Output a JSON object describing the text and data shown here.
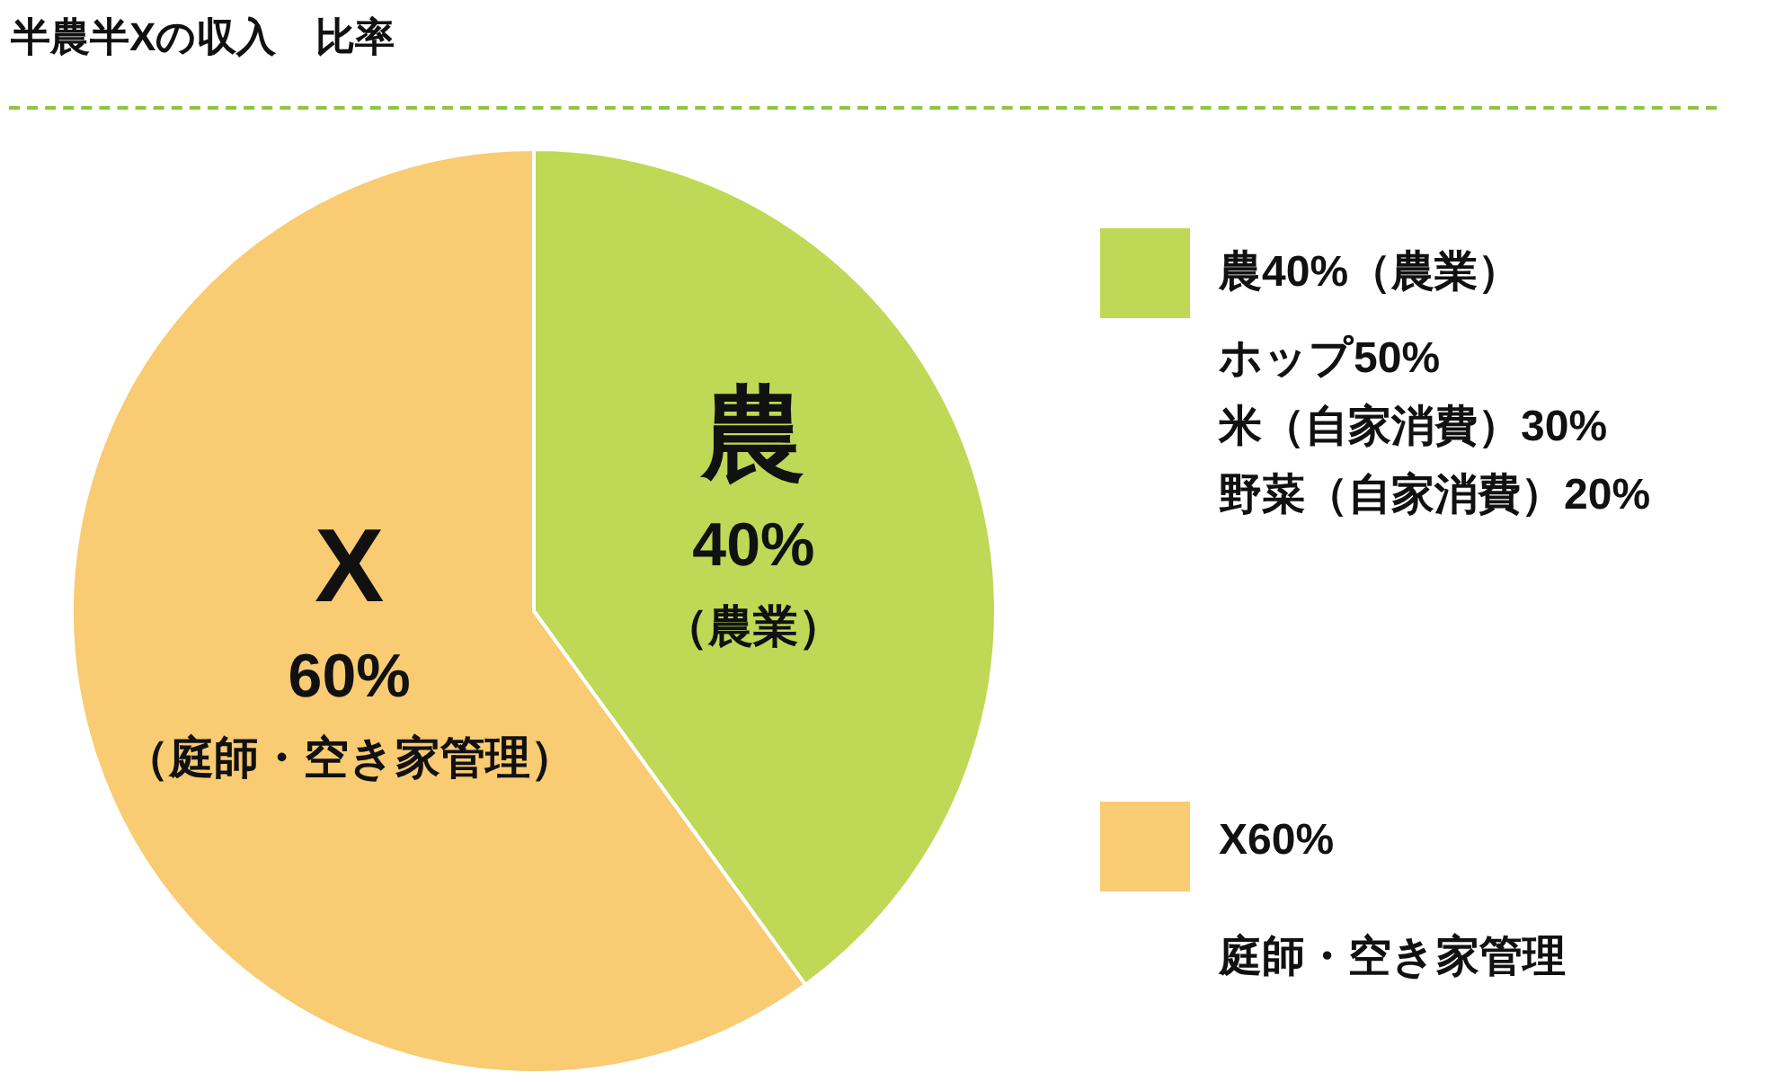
{
  "chart_data": {
    "type": "pie",
    "title": "半農半Xの収入　比率",
    "categories": [
      "農40%（農業）",
      "X60%"
    ],
    "values": [
      40,
      60
    ],
    "colors": [
      "#bfd855",
      "#f9cb72"
    ],
    "value_labels": [
      "40%",
      "60%"
    ],
    "legend": "right",
    "annotations": [
      "農",
      "（農業）",
      "X",
      "（庭師・空き家管理）",
      "ホップ50%",
      "米（自家消費）30%",
      "野菜（自家消費）20%",
      "庭師・空き家管理"
    ]
  }
}
